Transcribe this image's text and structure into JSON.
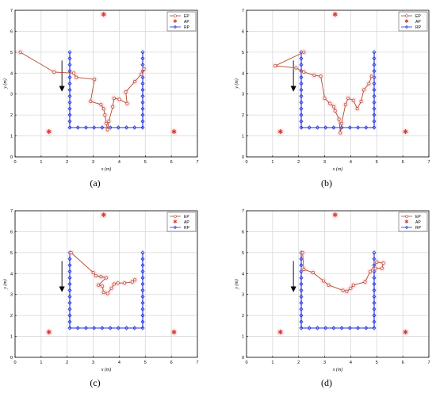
{
  "figure": {
    "captions": [
      "(a)",
      "(b)",
      "(c)",
      "(d)"
    ]
  },
  "colors": {
    "ep": "#b5482e",
    "ep_glow": "#f7c9cf",
    "ap": "#d03a2c",
    "ap_glow": "#f5b8bf",
    "rp": "#2233dd",
    "grid": "#d9d9d9",
    "axis": "#000000",
    "arrow": "#000000"
  },
  "chart_data": [
    {
      "type": "line",
      "panel": "(a)",
      "xlabel": "x (m)",
      "ylabel": "y (m)",
      "xlim": [
        0,
        7
      ],
      "ylim": [
        0,
        7
      ],
      "xticks": [
        0,
        1,
        2,
        3,
        4,
        5,
        6,
        7
      ],
      "yticks": [
        0,
        1,
        2,
        3,
        4,
        5,
        6,
        7
      ],
      "grid": true,
      "legend_position": "top-right",
      "legend": [
        "EP",
        "AP",
        "RP"
      ],
      "access_points": [
        [
          3.4,
          6.8
        ],
        [
          1.3,
          1.2
        ],
        [
          6.1,
          1.2
        ]
      ],
      "rp_path": [
        [
          2.1,
          5.0
        ],
        [
          2.1,
          1.4
        ],
        [
          4.9,
          1.4
        ],
        [
          4.9,
          5.0
        ]
      ],
      "rp_spacing": 0.3,
      "walk_arrow": {
        "x": 1.8,
        "from_y": 4.6,
        "to_y": 3.1
      },
      "series": [
        {
          "name": "EP",
          "points": [
            [
              0.2,
              5.0
            ],
            [
              1.5,
              4.05
            ],
            [
              2.25,
              4.0
            ],
            [
              2.35,
              3.8
            ],
            [
              3.05,
              3.7
            ],
            [
              2.9,
              2.65
            ],
            [
              3.3,
              2.5
            ],
            [
              3.4,
              2.3
            ],
            [
              3.45,
              2.0
            ],
            [
              3.5,
              1.6
            ],
            [
              3.55,
              1.3
            ],
            [
              3.6,
              1.7
            ],
            [
              3.75,
              2.4
            ],
            [
              3.8,
              2.8
            ],
            [
              4.0,
              2.75
            ],
            [
              4.3,
              2.55
            ],
            [
              4.25,
              3.1
            ],
            [
              4.6,
              3.6
            ],
            [
              4.85,
              3.95
            ],
            [
              4.95,
              4.2
            ]
          ]
        }
      ]
    },
    {
      "type": "line",
      "panel": "(b)",
      "xlabel": "x (m)",
      "ylabel": "y (m)",
      "xlim": [
        0,
        7
      ],
      "ylim": [
        0,
        7
      ],
      "xticks": [
        0,
        1,
        2,
        3,
        4,
        5,
        6,
        7
      ],
      "yticks": [
        0,
        1,
        2,
        3,
        4,
        5,
        6,
        7
      ],
      "grid": true,
      "legend_position": "top-right",
      "legend": [
        "EP",
        "AP",
        "RP"
      ],
      "access_points": [
        [
          3.4,
          6.8
        ],
        [
          1.3,
          1.2
        ],
        [
          6.1,
          1.2
        ]
      ],
      "rp_path": [
        [
          2.1,
          5.0
        ],
        [
          2.1,
          1.4
        ],
        [
          4.9,
          1.4
        ],
        [
          4.9,
          5.0
        ]
      ],
      "rp_spacing": 0.3,
      "walk_arrow": {
        "x": 1.8,
        "from_y": 4.6,
        "to_y": 3.1
      },
      "series": [
        {
          "name": "EP",
          "points": [
            [
              2.2,
              5.0
            ],
            [
              1.1,
              4.35
            ],
            [
              1.9,
              4.25
            ],
            [
              2.2,
              4.05
            ],
            [
              2.6,
              3.9
            ],
            [
              2.85,
              3.85
            ],
            [
              3.0,
              2.8
            ],
            [
              3.2,
              2.55
            ],
            [
              3.35,
              2.4
            ],
            [
              3.4,
              2.2
            ],
            [
              3.55,
              1.8
            ],
            [
              3.6,
              1.15
            ],
            [
              3.65,
              1.6
            ],
            [
              3.8,
              2.5
            ],
            [
              3.9,
              2.8
            ],
            [
              4.1,
              2.7
            ],
            [
              4.25,
              2.3
            ],
            [
              4.4,
              2.65
            ],
            [
              4.5,
              3.2
            ],
            [
              4.7,
              3.5
            ],
            [
              4.8,
              3.85
            ]
          ]
        }
      ]
    },
    {
      "type": "line",
      "panel": "(c)",
      "xlabel": "x (m)",
      "ylabel": "y (m)",
      "xlim": [
        0,
        7
      ],
      "ylim": [
        0,
        7
      ],
      "xticks": [
        0,
        1,
        2,
        3,
        4,
        5,
        6,
        7
      ],
      "yticks": [
        0,
        1,
        2,
        3,
        4,
        5,
        6,
        7
      ],
      "grid": true,
      "legend_position": "top-right",
      "legend": [
        "EP",
        "AP",
        "RP"
      ],
      "access_points": [
        [
          3.4,
          6.8
        ],
        [
          1.3,
          1.2
        ],
        [
          6.1,
          1.2
        ]
      ],
      "rp_path": [
        [
          2.1,
          5.0
        ],
        [
          2.1,
          1.4
        ],
        [
          4.9,
          1.4
        ],
        [
          4.9,
          5.0
        ]
      ],
      "rp_spacing": 0.3,
      "walk_arrow": {
        "x": 1.8,
        "from_y": 4.6,
        "to_y": 3.1
      },
      "series": [
        {
          "name": "EP",
          "points": [
            [
              2.15,
              5.0
            ],
            [
              3.0,
              4.05
            ],
            [
              3.1,
              3.9
            ],
            [
              3.3,
              3.85
            ],
            [
              3.5,
              3.8
            ],
            [
              3.2,
              3.45
            ],
            [
              3.35,
              3.4
            ],
            [
              3.4,
              3.1
            ],
            [
              3.55,
              3.05
            ],
            [
              3.7,
              3.3
            ],
            [
              3.8,
              3.5
            ],
            [
              3.95,
              3.55
            ],
            [
              4.2,
              3.55
            ],
            [
              4.5,
              3.6
            ],
            [
              4.6,
              3.7
            ]
          ]
        }
      ]
    },
    {
      "type": "line",
      "panel": "(d)",
      "xlabel": "x (m)",
      "ylabel": "y (m)",
      "xlim": [
        0,
        7
      ],
      "ylim": [
        0,
        7
      ],
      "xticks": [
        0,
        1,
        2,
        3,
        4,
        5,
        6,
        7
      ],
      "yticks": [
        0,
        1,
        2,
        3,
        4,
        5,
        6,
        7
      ],
      "grid": true,
      "legend_position": "top-right",
      "legend": [
        "EP",
        "AP",
        "RP"
      ],
      "access_points": [
        [
          3.4,
          6.8
        ],
        [
          1.3,
          1.2
        ],
        [
          6.1,
          1.2
        ]
      ],
      "rp_path": [
        [
          2.1,
          5.0
        ],
        [
          2.1,
          1.4
        ],
        [
          4.9,
          1.4
        ],
        [
          4.9,
          5.0
        ]
      ],
      "rp_spacing": 0.3,
      "walk_arrow": {
        "x": 1.8,
        "from_y": 4.6,
        "to_y": 3.1
      },
      "series": [
        {
          "name": "EP",
          "points": [
            [
              2.15,
              5.0
            ],
            [
              2.2,
              4.2
            ],
            [
              2.55,
              4.05
            ],
            [
              2.95,
              3.65
            ],
            [
              3.15,
              3.45
            ],
            [
              3.7,
              3.2
            ],
            [
              3.85,
              3.15
            ],
            [
              4.0,
              3.3
            ],
            [
              4.1,
              3.45
            ],
            [
              4.55,
              3.6
            ],
            [
              4.75,
              4.1
            ],
            [
              5.0,
              4.55
            ],
            [
              5.25,
              4.5
            ],
            [
              5.2,
              4.25
            ],
            [
              4.95,
              4.25
            ]
          ]
        }
      ]
    }
  ]
}
